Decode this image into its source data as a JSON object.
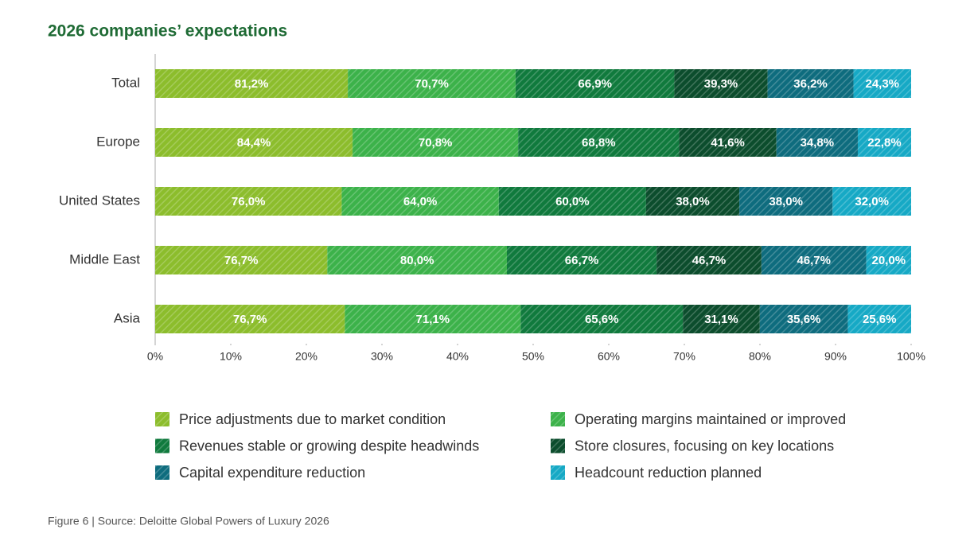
{
  "chart_data": {
    "type": "stacked-bar-100",
    "title": "2026 companies’ expectations",
    "source": "Figure 6 | Source: Deloitte Global Powers of Luxury 2026",
    "categories": [
      "Total",
      "Europe",
      "United States",
      "Middle East",
      "Asia"
    ],
    "series": [
      {
        "name": "Price adjustments due to market condition",
        "color": "#8cbd2c",
        "values": [
          81.2,
          84.4,
          76.0,
          76.7,
          76.7
        ],
        "value_labels": [
          "81,2%",
          "84,4%",
          "76,0%",
          "76,7%",
          "76,7%"
        ]
      },
      {
        "name": "Operating margins maintained or improved",
        "color": "#3cb24a",
        "values": [
          70.7,
          70.8,
          64.0,
          80.0,
          71.1
        ],
        "value_labels": [
          "70,7%",
          "70,8%",
          "64,0%",
          "80,0%",
          "71,1%"
        ]
      },
      {
        "name": "Revenues stable or growing despite headwinds",
        "color": "#107a3d",
        "values": [
          66.9,
          68.8,
          60.0,
          66.7,
          65.6
        ],
        "value_labels": [
          "66,9%",
          "68,8%",
          "60,0%",
          "66,7%",
          "65,6%"
        ]
      },
      {
        "name": "Store closures, focusing on key locations",
        "color": "#0c4d2d",
        "values": [
          39.3,
          41.6,
          38.0,
          46.7,
          31.1
        ],
        "value_labels": [
          "39,3%",
          "41,6%",
          "38,0%",
          "46,7%",
          "31,1%"
        ]
      },
      {
        "name": "Capital expenditure reduction",
        "color": "#0e6c7e",
        "values": [
          36.2,
          34.8,
          38.0,
          46.7,
          35.6
        ],
        "value_labels": [
          "36,2%",
          "34,8%",
          "38,0%",
          "46,7%",
          "35,6%"
        ]
      },
      {
        "name": "Headcount reduction planned",
        "color": "#16a9c5",
        "values": [
          24.3,
          22.8,
          32.0,
          20.0,
          25.6
        ],
        "value_labels": [
          "24,3%",
          "22,8%",
          "32,0%",
          "20,0%",
          "25,6%"
        ]
      }
    ],
    "xlim": [
      0,
      100
    ],
    "xticks": [
      {
        "value": 0,
        "label": "0%"
      },
      {
        "value": 10,
        "label": "10%"
      },
      {
        "value": 20,
        "label": "20%"
      },
      {
        "value": 30,
        "label": "30%"
      },
      {
        "value": 40,
        "label": "40%"
      },
      {
        "value": 50,
        "label": "50%"
      },
      {
        "value": 60,
        "label": "60%"
      },
      {
        "value": 70,
        "label": "70%"
      },
      {
        "value": 80,
        "label": "80%"
      },
      {
        "value": 90,
        "label": "90%"
      },
      {
        "value": 100,
        "label": "100%"
      }
    ]
  }
}
